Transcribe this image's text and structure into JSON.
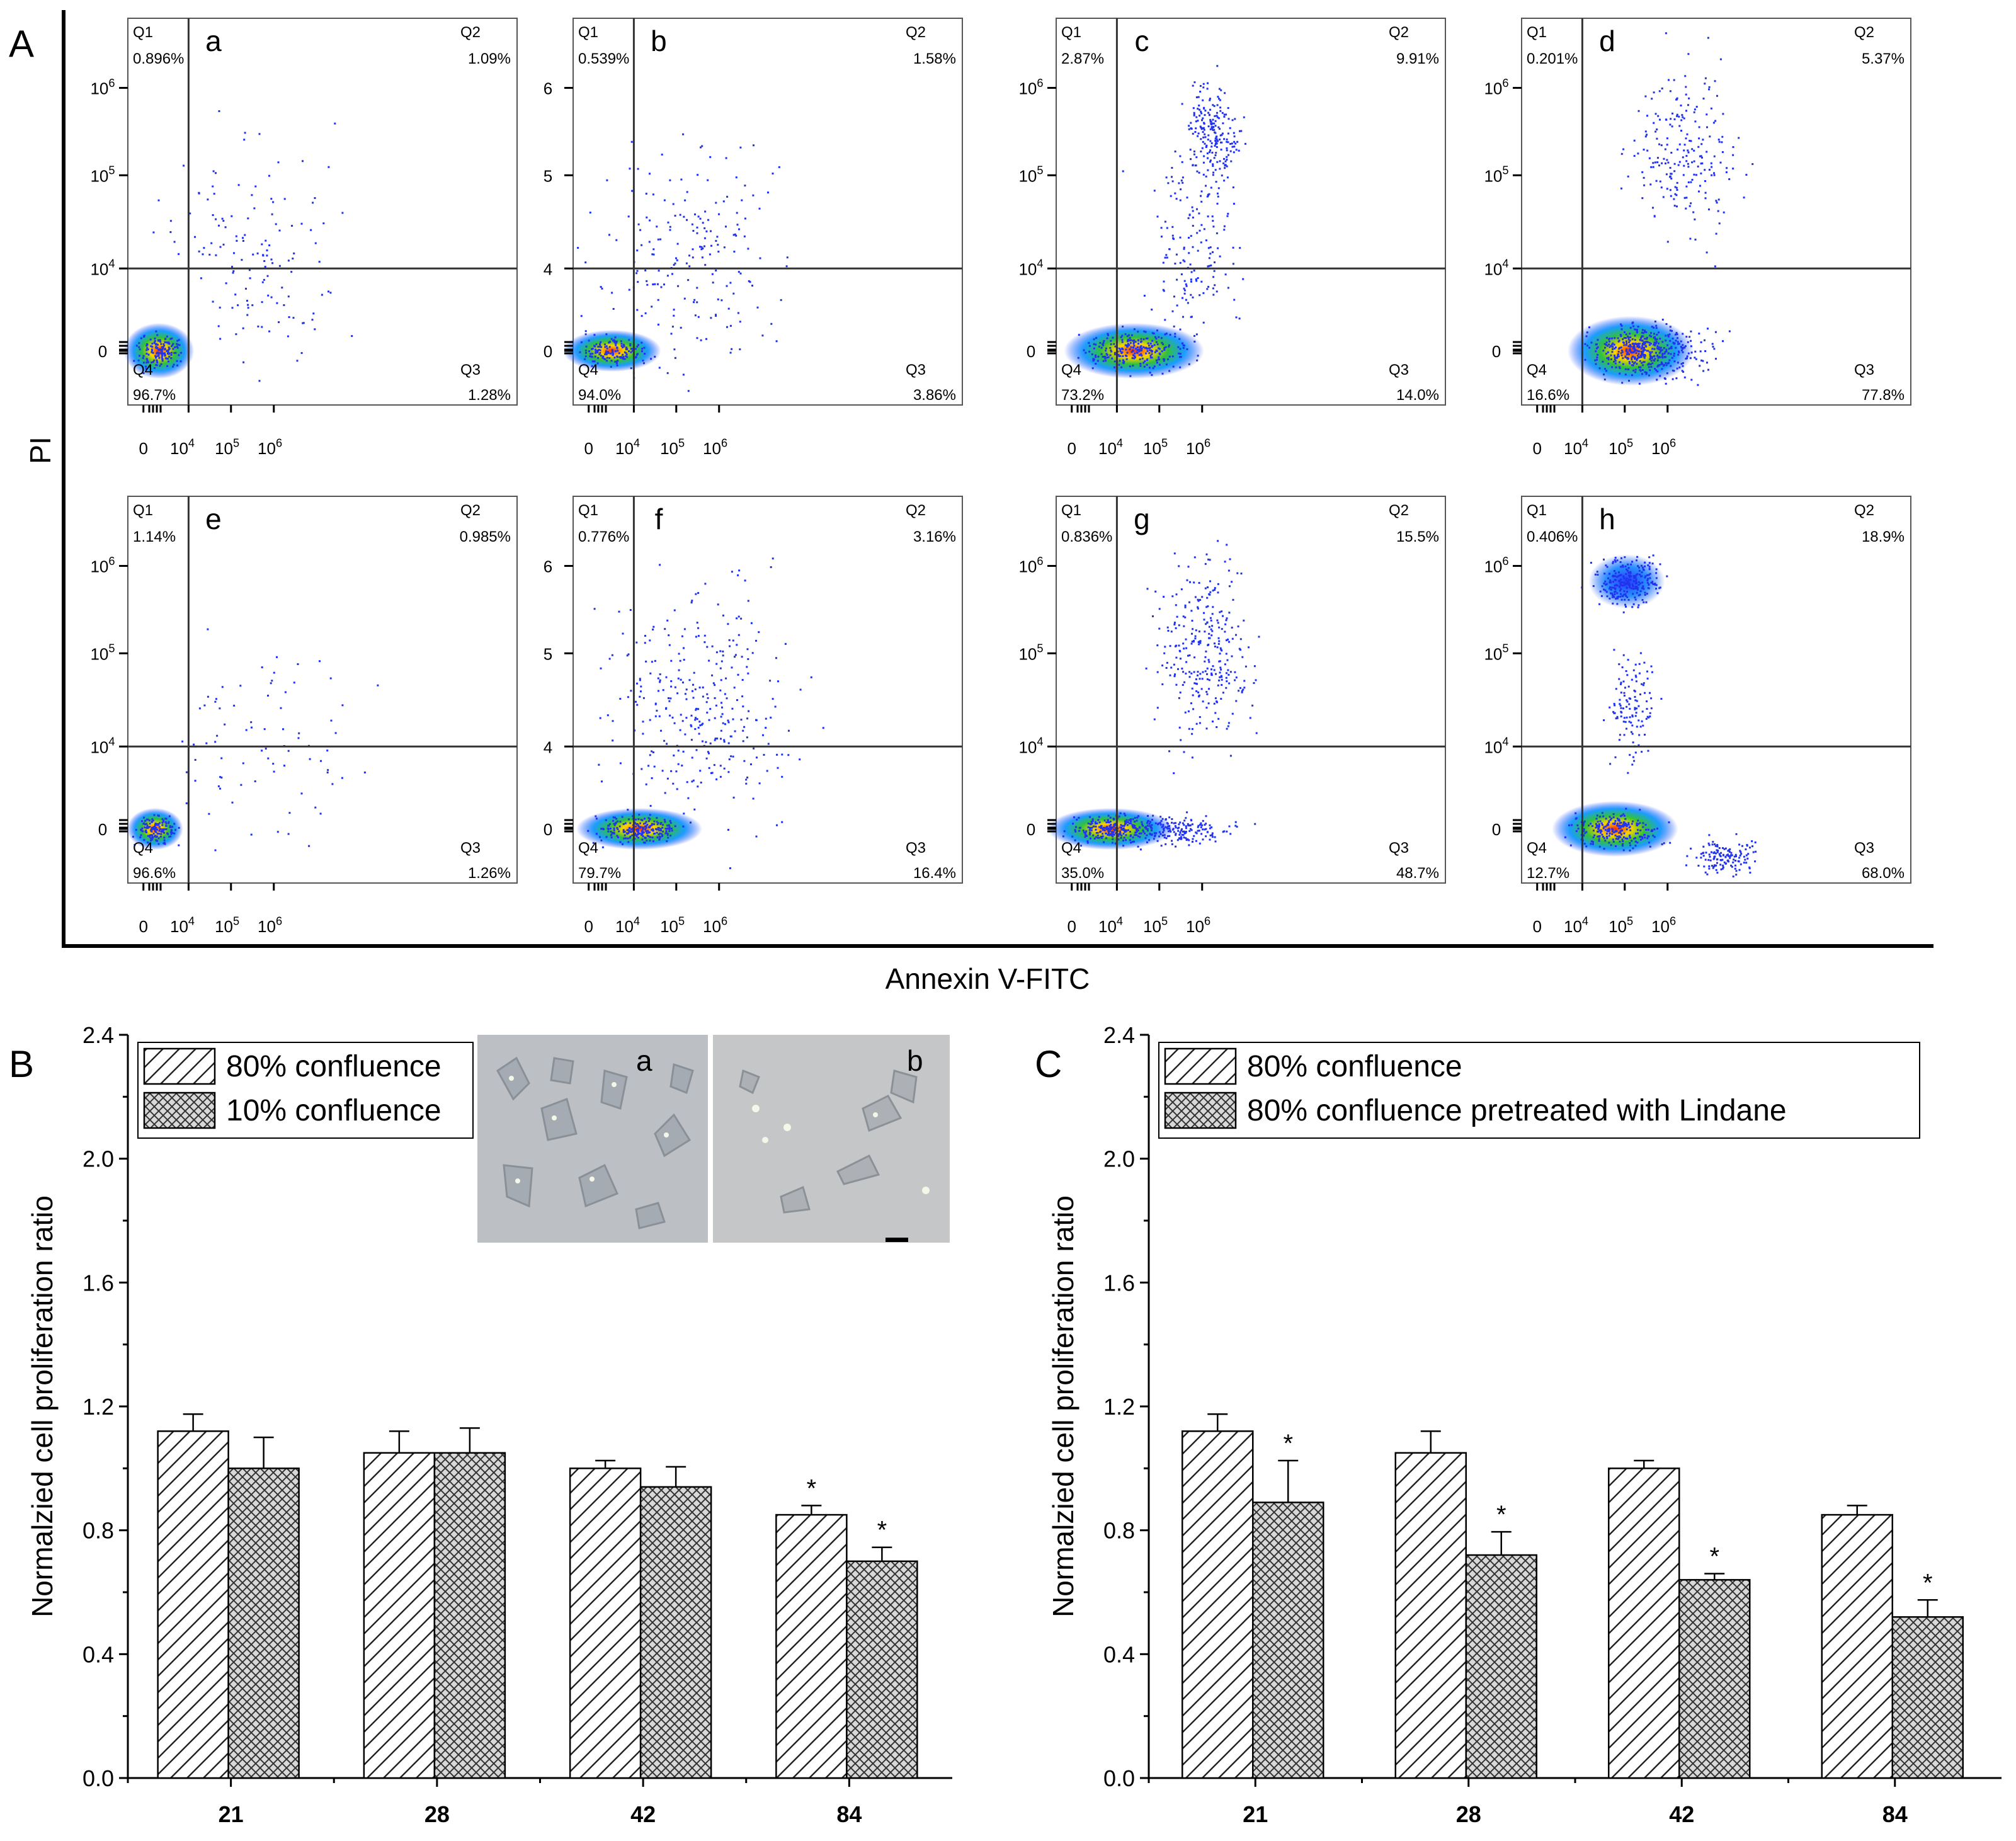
{
  "figure": {
    "panel_labels": {
      "A": "A",
      "B": "B",
      "C": "C"
    },
    "panelA": {
      "y_axis_label": "PI",
      "x_axis_label": "Annexin V-FITC"
    }
  },
  "chart_data": [
    {
      "type": "scatter",
      "subtype": "flow-cytometry-quadrant-plots",
      "title": "A",
      "xlabel": "Annexin V-FITC",
      "ylabel": "PI",
      "x_tick_labels": [
        "0",
        "10^4",
        "10^5",
        "10^6"
      ],
      "y_tick_labels_log": [
        "0",
        "10^4",
        "10^5",
        "10^6"
      ],
      "y_tick_labels_linear": [
        "0",
        "4",
        "5",
        "6"
      ],
      "quadrant_names": [
        "Q1",
        "Q2",
        "Q3",
        "Q4"
      ],
      "plots": [
        {
          "label": "a",
          "yaxis": "log",
          "Q1": "0.896%",
          "Q2": "1.09%",
          "Q3": "1.28%",
          "Q4": "96.7%"
        },
        {
          "label": "b",
          "yaxis": "linear",
          "Q1": "0.539%",
          "Q2": "1.58%",
          "Q3": "3.86%",
          "Q4": "94.0%"
        },
        {
          "label": "c",
          "yaxis": "log",
          "Q1": "2.87%",
          "Q2": "9.91%",
          "Q3": "14.0%",
          "Q4": "73.2%"
        },
        {
          "label": "d",
          "yaxis": "log",
          "Q1": "0.201%",
          "Q2": "5.37%",
          "Q3": "77.8%",
          "Q4": "16.6%"
        },
        {
          "label": "e",
          "yaxis": "log",
          "Q1": "1.14%",
          "Q2": "0.985%",
          "Q3": "1.26%",
          "Q4": "96.6%"
        },
        {
          "label": "f",
          "yaxis": "linear",
          "Q1": "0.776%",
          "Q2": "3.16%",
          "Q3": "16.4%",
          "Q4": "79.7%"
        },
        {
          "label": "g",
          "yaxis": "log",
          "Q1": "0.836%",
          "Q2": "15.5%",
          "Q3": "48.7%",
          "Q4": "35.0%"
        },
        {
          "label": "h",
          "yaxis": "log",
          "Q1": "0.406%",
          "Q2": "18.9%",
          "Q3": "68.0%",
          "Q4": "12.7%"
        }
      ]
    },
    {
      "type": "bar",
      "title": "B",
      "categories": [
        "21",
        "28",
        "42",
        "84"
      ],
      "series": [
        {
          "name": "80% confluence",
          "pattern": "hatch",
          "values": [
            1.12,
            1.05,
            1.0,
            0.85
          ],
          "errors": [
            0.055,
            0.07,
            0.025,
            0.03
          ],
          "significance": [
            "",
            "",
            "",
            "*"
          ]
        },
        {
          "name": "10% confluence",
          "pattern": "crosshatch",
          "values": [
            1.0,
            1.05,
            0.94,
            0.7
          ],
          "errors": [
            0.1,
            0.08,
            0.065,
            0.045
          ],
          "significance": [
            "",
            "",
            "",
            "*"
          ]
        }
      ],
      "ylabel": "Normalzied cell proliferation ratio",
      "ylim": [
        0,
        2.4
      ],
      "yticks": [
        "0.0",
        "0.4",
        "0.8",
        "1.2",
        "1.6",
        "2.0",
        "2.4"
      ],
      "legend_position": "top-left",
      "inset_labels": [
        "a",
        "b"
      ]
    },
    {
      "type": "bar",
      "title": "C",
      "categories": [
        "21",
        "28",
        "42",
        "84"
      ],
      "series": [
        {
          "name": "80% confluence",
          "pattern": "hatch",
          "values": [
            1.12,
            1.05,
            1.0,
            0.85
          ],
          "errors": [
            0.055,
            0.07,
            0.025,
            0.03
          ],
          "significance": [
            "",
            "",
            "",
            ""
          ]
        },
        {
          "name": "80% confluence pretreated with Lindane",
          "pattern": "crosshatch",
          "values": [
            0.89,
            0.72,
            0.64,
            0.52
          ],
          "errors": [
            0.135,
            0.075,
            0.02,
            0.055
          ],
          "significance": [
            "*",
            "*",
            "*",
            "*"
          ]
        }
      ],
      "ylabel": "Normalzied cell proliferation ratio",
      "ylim": [
        0,
        2.4
      ],
      "yticks": [
        "0.0",
        "0.4",
        "0.8",
        "1.2",
        "1.6",
        "2.0",
        "2.4"
      ],
      "legend_position": "top-left"
    }
  ]
}
